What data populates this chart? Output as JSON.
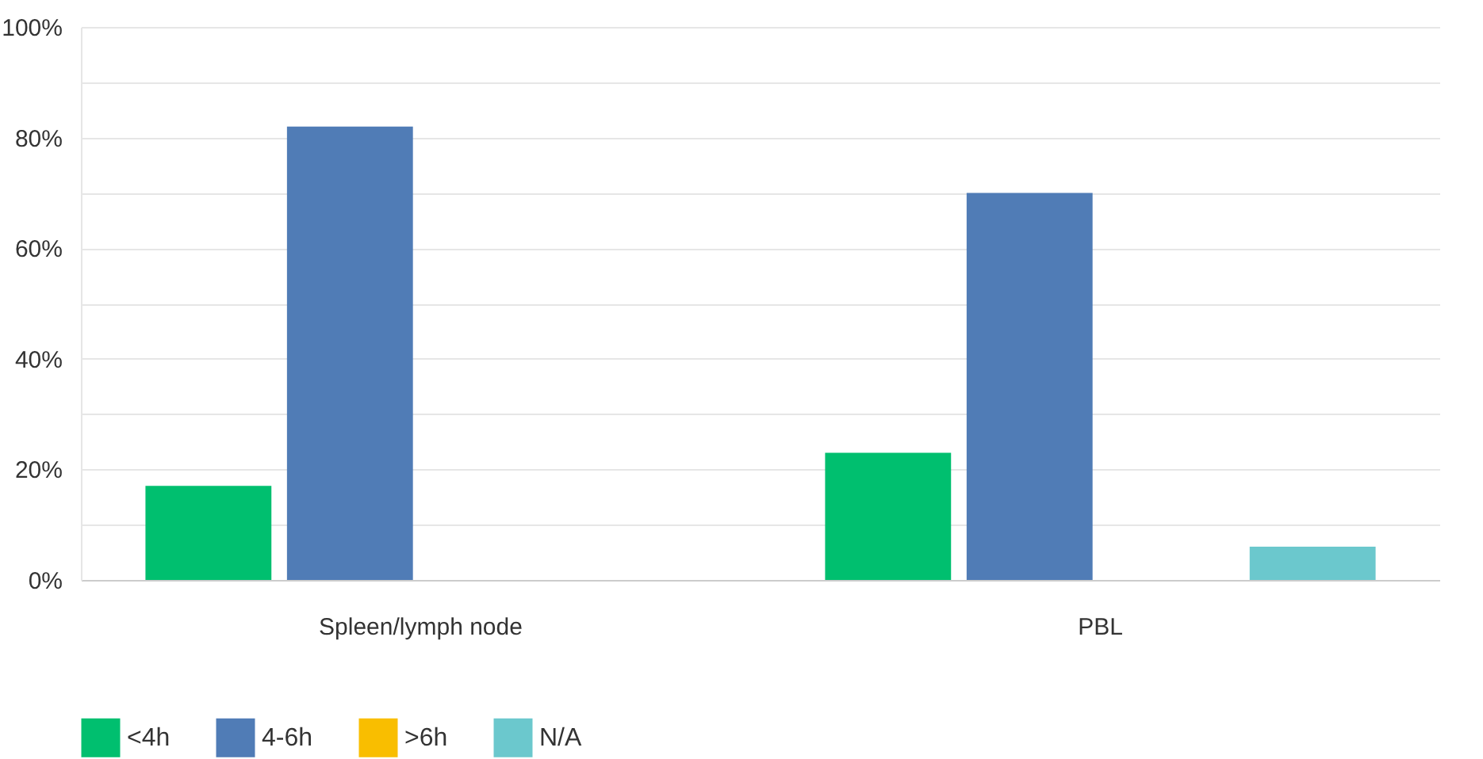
{
  "chart_data": {
    "type": "bar",
    "categories": [
      "Spleen/lymph node",
      "PBL"
    ],
    "series": [
      {
        "name": "<4h",
        "color": "#00bf6f",
        "values": [
          17,
          23
        ]
      },
      {
        "name": "4-6h",
        "color": "#507cb6",
        "values": [
          82,
          70
        ]
      },
      {
        "name": ">6h",
        "color": "#f9be00",
        "values": [
          0,
          0
        ]
      },
      {
        "name": "N/A",
        "color": "#6bc8cd",
        "values": [
          0,
          6
        ]
      }
    ],
    "ylim": [
      0,
      100
    ],
    "yticks": [
      {
        "value": 0,
        "label": "0%"
      },
      {
        "value": 10,
        "label": null
      },
      {
        "value": 20,
        "label": "20%"
      },
      {
        "value": 30,
        "label": null
      },
      {
        "value": 40,
        "label": "40%"
      },
      {
        "value": 50,
        "label": null
      },
      {
        "value": 60,
        "label": "60%"
      },
      {
        "value": 70,
        "label": null
      },
      {
        "value": 80,
        "label": "80%"
      },
      {
        "value": 90,
        "label": null
      },
      {
        "value": 100,
        "label": "100%"
      }
    ],
    "grid": "y",
    "legend": "bottom left"
  }
}
